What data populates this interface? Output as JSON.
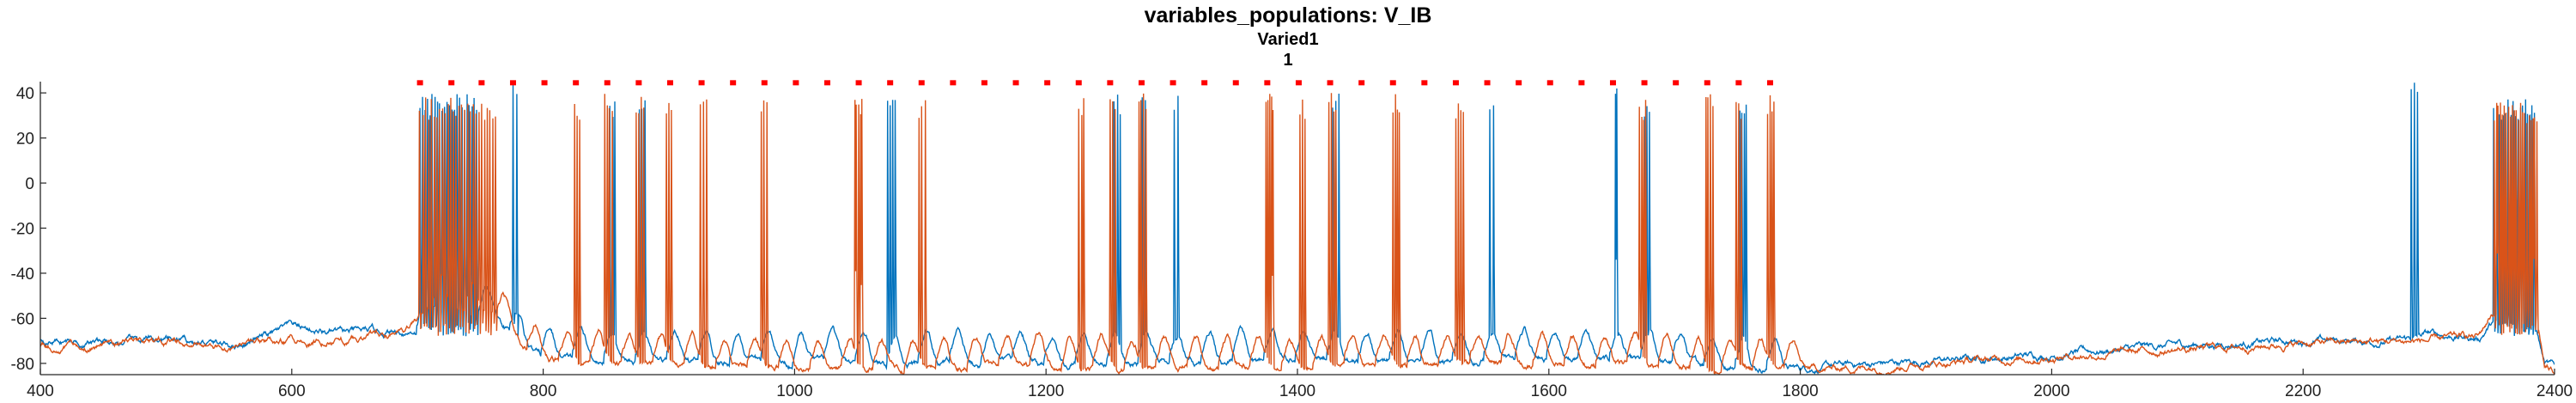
{
  "chart_data": {
    "type": "line",
    "title": "variables_populations: V_IB",
    "subtitle": "Varied1",
    "subtitle2": "1",
    "xlabel": "",
    "ylabel": "",
    "xlim": [
      400,
      2400
    ],
    "ylim": [
      -85,
      45
    ],
    "xticks": [
      400,
      600,
      800,
      1000,
      1200,
      1400,
      1600,
      1800,
      2000,
      2200,
      2400
    ],
    "yticks": [
      -80,
      -60,
      -40,
      -20,
      0,
      20,
      40
    ],
    "grid": false,
    "legend": "none",
    "colors": {
      "series_1": "#0072BD",
      "series_2": "#D95319",
      "markers": "#FF0000",
      "axes": "#262626"
    },
    "marker_y": 44.5,
    "spike_markers_x": [
      702,
      727,
      751,
      776,
      801,
      826,
      851,
      876,
      901,
      926,
      951,
      976,
      1001,
      1026,
      1051,
      1076,
      1101,
      1126,
      1151,
      1176,
      1201,
      1226,
      1251,
      1276,
      1301,
      1326,
      1351,
      1376,
      1401,
      1426,
      1451,
      1476,
      1501,
      1526,
      1551,
      1576,
      1601,
      1626,
      1651,
      1676,
      1701,
      1726,
      1751,
      1776
    ],
    "baseline": {
      "series_1": [
        [
          400,
          -69
        ],
        [
          450,
          -71
        ],
        [
          500,
          -70
        ],
        [
          550,
          -72
        ],
        [
          580,
          -68
        ],
        [
          600,
          -64
        ],
        [
          640,
          -67
        ],
        [
          690,
          -66
        ],
        [
          700,
          -65
        ],
        [
          710,
          -56
        ],
        [
          760,
          -60
        ],
        [
          800,
          -78
        ],
        [
          1000,
          -80
        ],
        [
          1200,
          -80
        ],
        [
          1400,
          -79
        ],
        [
          1600,
          -78
        ],
        [
          1800,
          -82
        ],
        [
          1900,
          -79
        ],
        [
          2000,
          -76
        ],
        [
          2100,
          -72
        ],
        [
          2200,
          -70
        ],
        [
          2280,
          -70
        ],
        [
          2300,
          -67
        ],
        [
          2340,
          -69
        ],
        [
          2350,
          -62
        ],
        [
          2385,
          -63
        ],
        [
          2392,
          -80
        ],
        [
          2400,
          -82
        ]
      ],
      "series_2": [
        [
          400,
          -72
        ],
        [
          450,
          -72
        ],
        [
          500,
          -71
        ],
        [
          550,
          -73
        ],
        [
          600,
          -70
        ],
        [
          650,
          -70
        ],
        [
          690,
          -67
        ],
        [
          700,
          -62
        ],
        [
          710,
          -55
        ],
        [
          760,
          -58
        ],
        [
          800,
          -80
        ],
        [
          1000,
          -82
        ],
        [
          1200,
          -82
        ],
        [
          1400,
          -81
        ],
        [
          1600,
          -80
        ],
        [
          1800,
          -83
        ],
        [
          1900,
          -80
        ],
        [
          2000,
          -77
        ],
        [
          2100,
          -74
        ],
        [
          2200,
          -71
        ],
        [
          2300,
          -70
        ],
        [
          2340,
          -68
        ],
        [
          2350,
          -58
        ],
        [
          2385,
          -58
        ],
        [
          2392,
          -82
        ],
        [
          2400,
          -84
        ]
      ]
    },
    "bursts": {
      "series_1": [
        {
          "start": 702,
          "end": 747,
          "count": 24,
          "peak": 40
        },
        {
          "start": 776,
          "end": 779,
          "count": 2,
          "peak": 44
        },
        {
          "start": 853,
          "end": 857,
          "count": 3,
          "peak": 38
        },
        {
          "start": 877,
          "end": 881,
          "count": 3,
          "peak": 40
        },
        {
          "start": 1074,
          "end": 1080,
          "count": 4,
          "peak": 38
        },
        {
          "start": 1254,
          "end": 1259,
          "count": 3,
          "peak": 40
        },
        {
          "start": 1276,
          "end": 1279,
          "count": 2,
          "peak": 43
        },
        {
          "start": 1302,
          "end": 1305,
          "count": 2,
          "peak": 42
        },
        {
          "start": 1428,
          "end": 1433,
          "count": 3,
          "peak": 40
        },
        {
          "start": 1553,
          "end": 1556,
          "count": 2,
          "peak": 42
        },
        {
          "start": 1653,
          "end": 1654,
          "count": 2,
          "peak": 44
        },
        {
          "start": 1676,
          "end": 1680,
          "count": 3,
          "peak": 36
        },
        {
          "start": 1752,
          "end": 1757,
          "count": 4,
          "peak": 40
        },
        {
          "start": 2286,
          "end": 2291,
          "count": 3,
          "peak": 45
        },
        {
          "start": 2352,
          "end": 2384,
          "count": 18,
          "peak": 38
        }
      ],
      "series_2": [
        {
          "start": 702,
          "end": 762,
          "count": 28,
          "peak": 38
        },
        {
          "start": 825,
          "end": 829,
          "count": 3,
          "peak": 38
        },
        {
          "start": 849,
          "end": 855,
          "count": 4,
          "peak": 40
        },
        {
          "start": 874,
          "end": 880,
          "count": 4,
          "peak": 40
        },
        {
          "start": 898,
          "end": 902,
          "count": 3,
          "peak": 38
        },
        {
          "start": 925,
          "end": 930,
          "count": 3,
          "peak": 38
        },
        {
          "start": 973,
          "end": 978,
          "count": 3,
          "peak": 40
        },
        {
          "start": 1048,
          "end": 1054,
          "count": 5,
          "peak": 40
        },
        {
          "start": 1099,
          "end": 1104,
          "count": 3,
          "peak": 38
        },
        {
          "start": 1226,
          "end": 1230,
          "count": 3,
          "peak": 38
        },
        {
          "start": 1251,
          "end": 1255,
          "count": 3,
          "peak": 38
        },
        {
          "start": 1274,
          "end": 1279,
          "count": 4,
          "peak": 40
        },
        {
          "start": 1375,
          "end": 1381,
          "count": 5,
          "peak": 40
        },
        {
          "start": 1402,
          "end": 1406,
          "count": 3,
          "peak": 38
        },
        {
          "start": 1425,
          "end": 1431,
          "count": 4,
          "peak": 40
        },
        {
          "start": 1476,
          "end": 1481,
          "count": 4,
          "peak": 40
        },
        {
          "start": 1526,
          "end": 1532,
          "count": 4,
          "peak": 38
        },
        {
          "start": 1672,
          "end": 1677,
          "count": 4,
          "peak": 38
        },
        {
          "start": 1725,
          "end": 1730,
          "count": 4,
          "peak": 40
        },
        {
          "start": 1749,
          "end": 1753,
          "count": 3,
          "peak": 36
        },
        {
          "start": 1774,
          "end": 1779,
          "count": 4,
          "peak": 40
        },
        {
          "start": 2352,
          "end": 2386,
          "count": 22,
          "peak": 36
        }
      ]
    },
    "humps": {
      "series_1": [
        702,
        727,
        751,
        776,
        801,
        826,
        851,
        876,
        901,
        926,
        951,
        976,
        1001,
        1026,
        1051,
        1076,
        1101,
        1126,
        1151,
        1176,
        1201,
        1226,
        1251,
        1276,
        1301,
        1326,
        1351,
        1376,
        1401,
        1426,
        1451,
        1476,
        1501,
        1526,
        1551,
        1576,
        1601,
        1626,
        1651,
        1676,
        1701,
        1726,
        1751,
        1776
      ],
      "series_2": [
        715,
        740,
        765,
        790,
        815,
        840,
        865,
        890,
        915,
        940,
        965,
        990,
        1015,
        1040,
        1065,
        1090,
        1115,
        1140,
        1165,
        1190,
        1215,
        1240,
        1265,
        1290,
        1315,
        1340,
        1365,
        1390,
        1415,
        1440,
        1465,
        1490,
        1515,
        1540,
        1565,
        1590,
        1615,
        1640,
        1665,
        1690,
        1715,
        1740,
        1765,
        1790
      ]
    }
  }
}
